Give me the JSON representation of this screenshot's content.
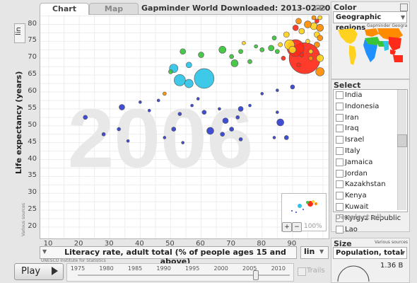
{
  "tabs": {
    "chart": "Chart",
    "map": "Map"
  },
  "title": "Gapminder World Downloaded: 2013-02-20",
  "y_axis": {
    "scale": "lin",
    "title": "Life expectancy (years)",
    "source": "Various sources",
    "ticks": [
      "80",
      "75",
      "70",
      "65",
      "60",
      "55",
      "50",
      "45",
      "40",
      "35",
      "30",
      "25",
      "20"
    ]
  },
  "x_axis": {
    "title": "Literacy rate, adult total (% of people ages 15 and above)",
    "scale": "lin",
    "source": "UNESCO Institute for Statistics",
    "ticks": [
      "10",
      "20",
      "30",
      "40",
      "50",
      "60",
      "70",
      "80",
      "90"
    ]
  },
  "year_watermark": "2006",
  "playback": {
    "play_label": "Play",
    "years": [
      "1975",
      "1980",
      "1985",
      "1990",
      "1995",
      "2000",
      "2005",
      "2010"
    ],
    "current_year_value": 2006,
    "trails_label": "Trails"
  },
  "zoom": {
    "percent": "100%"
  },
  "color_panel": {
    "title": "Color",
    "selected": "Geographic regions",
    "map_caption": "Gapminder Geogra"
  },
  "select_panel": {
    "title": "Select",
    "items": [
      "India",
      "Indonesia",
      "Iran",
      "Iraq",
      "Israel",
      "Italy",
      "Jamaica",
      "Jordan",
      "Kazakhstan",
      "Kenya",
      "Kuwait",
      "Kyrgyz Republic",
      "Lao"
    ],
    "deselect_label": "Deselect all"
  },
  "size_panel": {
    "title": "Size",
    "source": "Various sources",
    "selected": "Population, total",
    "legend_value": "1.36 B"
  },
  "colors": {
    "sub_saharan_africa": "#1e90ff",
    "south_asia": "#2ec4e6",
    "east_asia_pacific": "#ff2a1a",
    "middle_east_north_africa": "#39c43a",
    "america": "#ffd21f",
    "europe_central_asia": "#ff8c00",
    "watermark": "#e8e8e8"
  },
  "bubbles": [
    {
      "x": 34,
      "y": 55.5,
      "r": 4,
      "c": "#2f3fd0"
    },
    {
      "x": 22,
      "y": 52.5,
      "r": 3,
      "c": "#2f3fd0"
    },
    {
      "x": 28,
      "y": 47.5,
      "r": 2.5,
      "c": "#2f3fd0"
    },
    {
      "x": 33,
      "y": 49,
      "r": 2.5,
      "c": "#2f3fd0"
    },
    {
      "x": 36,
      "y": 45.5,
      "r": 2,
      "c": "#2f3fd0"
    },
    {
      "x": 40,
      "y": 57,
      "r": 2,
      "c": "#2f3fd0"
    },
    {
      "x": 43,
      "y": 54.5,
      "r": 2,
      "c": "#2f3fd0"
    },
    {
      "x": 46,
      "y": 57.5,
      "r": 2,
      "c": "#2f3fd0"
    },
    {
      "x": 48,
      "y": 46.5,
      "r": 2,
      "c": "#2f3fd0"
    },
    {
      "x": 51,
      "y": 49,
      "r": 3,
      "c": "#2f3fd0"
    },
    {
      "x": 53,
      "y": 53.5,
      "r": 2.5,
      "c": "#2f3fd0"
    },
    {
      "x": 54,
      "y": 45,
      "r": 2,
      "c": "#2f3fd0"
    },
    {
      "x": 57,
      "y": 56,
      "r": 2,
      "c": "#2f3fd0"
    },
    {
      "x": 59,
      "y": 58,
      "r": 2,
      "c": "#2f3fd0"
    },
    {
      "x": 61,
      "y": 54,
      "r": 3,
      "c": "#2f3fd0"
    },
    {
      "x": 63,
      "y": 48.5,
      "r": 5,
      "c": "#2f3fd0"
    },
    {
      "x": 66,
      "y": 55,
      "r": 2,
      "c": "#2f3fd0"
    },
    {
      "x": 67,
      "y": 47.5,
      "r": 3,
      "c": "#2f3fd0"
    },
    {
      "x": 68,
      "y": 51.5,
      "r": 4,
      "c": "#2f3fd0"
    },
    {
      "x": 70,
      "y": 49,
      "r": 3,
      "c": "#2f3fd0"
    },
    {
      "x": 72,
      "y": 52.5,
      "r": 2.5,
      "c": "#2f3fd0"
    },
    {
      "x": 73,
      "y": 55,
      "r": 3.5,
      "c": "#2f3fd0"
    },
    {
      "x": 73,
      "y": 46,
      "r": 2.5,
      "c": "#2f3fd0"
    },
    {
      "x": 76,
      "y": 56,
      "r": 2,
      "c": "#2f3fd0"
    },
    {
      "x": 80,
      "y": 59.5,
      "r": 2,
      "c": "#2f3fd0"
    },
    {
      "x": 85,
      "y": 54,
      "r": 2,
      "c": "#2f3fd0"
    },
    {
      "x": 86,
      "y": 51,
      "r": 5,
      "c": "#2f3fd0"
    },
    {
      "x": 88,
      "y": 46.5,
      "r": 3,
      "c": "#2f3fd0"
    },
    {
      "x": 84,
      "y": 46.5,
      "r": 2,
      "c": "#2f3fd0"
    },
    {
      "x": 85,
      "y": 60.5,
      "r": 2,
      "c": "#2f3fd0"
    },
    {
      "x": 90,
      "y": 61.5,
      "r": 3,
      "c": "#2f3fd0"
    },
    {
      "x": 48,
      "y": 59.5,
      "r": 2.5,
      "c": "#ff8c00"
    },
    {
      "x": 61,
      "y": 64,
      "r": 14,
      "c": "#2ec4e6"
    },
    {
      "x": 51,
      "y": 67,
      "r": 6,
      "c": "#2ec4e6"
    },
    {
      "x": 53,
      "y": 63.5,
      "r": 8,
      "c": "#2ec4e6"
    },
    {
      "x": 56,
      "y": 62.5,
      "r": 6,
      "c": "#2ec4e6"
    },
    {
      "x": 56,
      "y": 68,
      "r": 4,
      "c": "#2ec4e6"
    },
    {
      "x": 50,
      "y": 66,
      "r": 3,
      "c": "#39c43a"
    },
    {
      "x": 54,
      "y": 72,
      "r": 4,
      "c": "#39c43a"
    },
    {
      "x": 60,
      "y": 71,
      "r": 4,
      "c": "#39c43a"
    },
    {
      "x": 67,
      "y": 72.5,
      "r": 5,
      "c": "#39c43a"
    },
    {
      "x": 70,
      "y": 70.5,
      "r": 3,
      "c": "#39c43a"
    },
    {
      "x": 71,
      "y": 68.5,
      "r": 5,
      "c": "#39c43a"
    },
    {
      "x": 73,
      "y": 72,
      "r": 3,
      "c": "#39c43a"
    },
    {
      "x": 76,
      "y": 69,
      "r": 3,
      "c": "#39c43a"
    },
    {
      "x": 80,
      "y": 72.5,
      "r": 3,
      "c": "#39c43a"
    },
    {
      "x": 83,
      "y": 73,
      "r": 4,
      "c": "#39c43a"
    },
    {
      "x": 84,
      "y": 76,
      "r": 3,
      "c": "#39c43a"
    },
    {
      "x": 85,
      "y": 72,
      "r": 3,
      "c": "#39c43a"
    },
    {
      "x": 78,
      "y": 73.5,
      "r": 2.5,
      "c": "#39c43a"
    },
    {
      "x": 74,
      "y": 74.5,
      "r": 2.5,
      "c": "#ffd21f"
    },
    {
      "x": 86,
      "y": 74,
      "r": 3,
      "c": "#ffd21f"
    },
    {
      "x": 88,
      "y": 77,
      "r": 4,
      "c": "#ffd21f"
    },
    {
      "x": 89,
      "y": 74,
      "r": 7,
      "c": "#ffd21f"
    },
    {
      "x": 90,
      "y": 72.5,
      "r": 5,
      "c": "#ffd21f"
    },
    {
      "x": 93,
      "y": 78,
      "r": 4,
      "c": "#ffd21f"
    },
    {
      "x": 95,
      "y": 75,
      "r": 3,
      "c": "#ffd21f"
    },
    {
      "x": 96,
      "y": 72,
      "r": 3,
      "c": "#ffd21f"
    },
    {
      "x": 97,
      "y": 79.5,
      "r": 5,
      "c": "#ffd21f"
    },
    {
      "x": 98,
      "y": 77,
      "r": 4,
      "c": "#ffd21f"
    },
    {
      "x": 99,
      "y": 70,
      "r": 5,
      "c": "#ffd21f"
    },
    {
      "x": 99,
      "y": 82,
      "r": 3,
      "c": "#ffd21f"
    },
    {
      "x": 92,
      "y": 81,
      "r": 4,
      "c": "#ff8c00"
    },
    {
      "x": 95,
      "y": 80,
      "r": 5,
      "c": "#ff8c00"
    },
    {
      "x": 97,
      "y": 82,
      "r": 3,
      "c": "#ff8c00"
    },
    {
      "x": 98,
      "y": 74,
      "r": 4,
      "c": "#ff8c00"
    },
    {
      "x": 99,
      "y": 66,
      "r": 6,
      "c": "#ff8c00"
    },
    {
      "x": 99,
      "y": 79,
      "r": 5,
      "c": "#ff8c00"
    },
    {
      "x": 99,
      "y": 76,
      "r": 4,
      "c": "#ff8c00"
    },
    {
      "x": 96,
      "y": 70,
      "r": 3,
      "c": "#ff8c00"
    },
    {
      "x": 93,
      "y": 71,
      "r": 3,
      "c": "#ff2a1a"
    },
    {
      "x": 92,
      "y": 68,
      "r": 3,
      "c": "#ff2a1a"
    },
    {
      "x": 98,
      "y": 81,
      "r": 3,
      "c": "#ff2a1a"
    },
    {
      "x": 91,
      "y": 79,
      "r": 4,
      "c": "#ff2a1a"
    },
    {
      "x": 91,
      "y": 73,
      "r": 12,
      "c": "#ff2a1a"
    },
    {
      "x": 94,
      "y": 70,
      "r": 22,
      "c": "#ff2a1a"
    },
    {
      "x": 87,
      "y": 70,
      "r": 3,
      "c": "#ff2a1a"
    }
  ]
}
